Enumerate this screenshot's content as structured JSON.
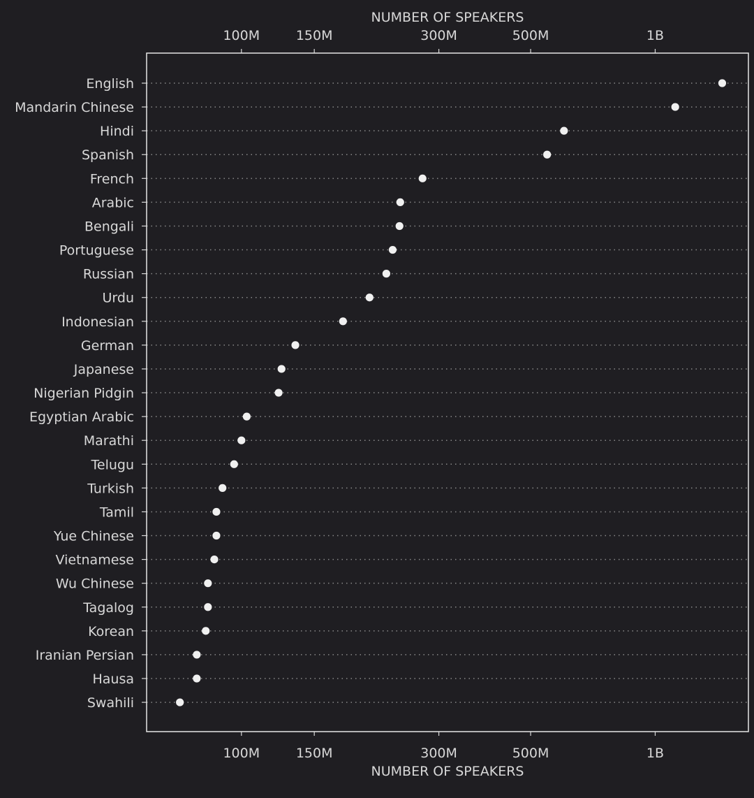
{
  "chart_data": {
    "type": "scatter",
    "xlabel": "NUMBER OF SPEAKERS",
    "x_scale": "log",
    "xlim": [
      59000000,
      1680000000
    ],
    "x_ticks": [
      {
        "value": 100000000,
        "label": "100M"
      },
      {
        "value": 150000000,
        "label": "150M"
      },
      {
        "value": 300000000,
        "label": "300M"
      },
      {
        "value": 500000000,
        "label": "500M"
      },
      {
        "value": 1000000000,
        "label": "1B"
      }
    ],
    "grid": "horizontal dotted",
    "categories": [
      "English",
      "Mandarin Chinese",
      "Hindi",
      "Spanish",
      "French",
      "Arabic",
      "Bengali",
      "Portuguese",
      "Russian",
      "Urdu",
      "Indonesian",
      "German",
      "Japanese",
      "Nigerian Pidgin",
      "Egyptian Arabic",
      "Marathi",
      "Telugu",
      "Turkish",
      "Tamil",
      "Yue Chinese",
      "Vietnamese",
      "Wu Chinese",
      "Tagalog",
      "Korean",
      "Iranian Persian",
      "Hausa",
      "Swahili"
    ],
    "values": [
      1452000000,
      1118000000,
      602000000,
      548000000,
      274000000,
      242000000,
      241000000,
      232000000,
      224000000,
      204000000,
      176000000,
      135000000,
      125000000,
      123000000,
      103000000,
      100000000,
      96000000,
      90000000,
      87000000,
      87000000,
      86000000,
      83000000,
      83000000,
      82000000,
      78000000,
      78000000,
      71000000
    ],
    "colors": {
      "background": "#1f1e22",
      "dot": "#f0f0f0",
      "text": "#d8d8d8",
      "grid": "#8a8a8a",
      "frame": "#e6e6e6"
    }
  }
}
